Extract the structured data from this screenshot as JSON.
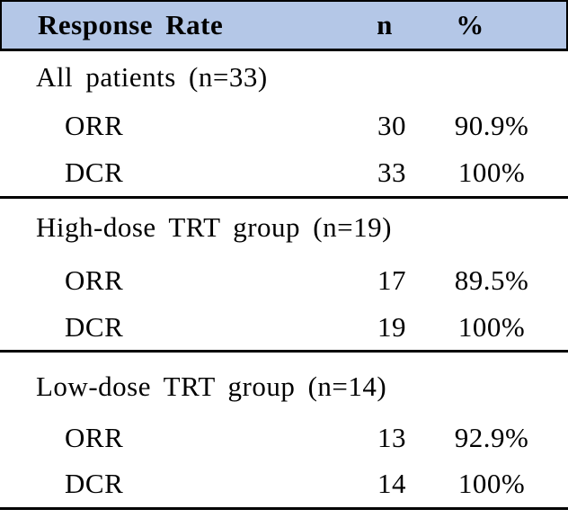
{
  "table": {
    "title": "Response Rate table",
    "colors": {
      "header_bg": "#b4c7e7",
      "border": "#000000",
      "text": "#000000"
    },
    "header": {
      "label": "Response Rate",
      "col_n": "n",
      "col_pct": "%"
    },
    "sections": [
      {
        "group": "All patients (n=33)",
        "rows": [
          {
            "label": "ORR",
            "n": "30",
            "pct": "90.9%"
          },
          {
            "label": "DCR",
            "n": "33",
            "pct": "100%"
          }
        ]
      },
      {
        "group": "High-dose TRT group (n=19)",
        "rows": [
          {
            "label": "ORR",
            "n": "17",
            "pct": "89.5%"
          },
          {
            "label": "DCR",
            "n": "19",
            "pct": "100%"
          }
        ]
      },
      {
        "group": "Low-dose TRT group (n=14)",
        "rows": [
          {
            "label": "ORR",
            "n": "13",
            "pct": "92.9%"
          },
          {
            "label": "DCR",
            "n": "14",
            "pct": "100%"
          }
        ]
      }
    ]
  }
}
